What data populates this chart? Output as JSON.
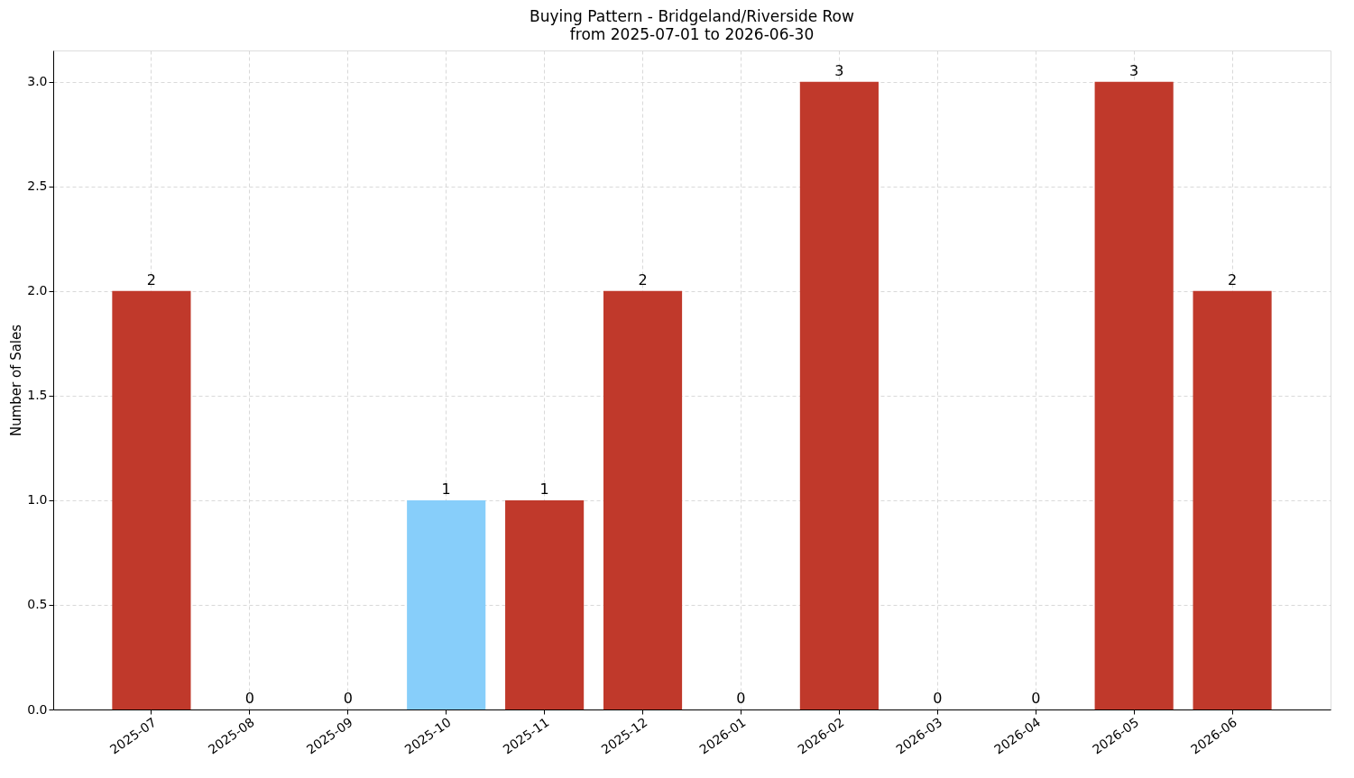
{
  "chart_data": {
    "type": "bar",
    "title": "Buying Pattern - Bridgeland/Riverside Row",
    "subtitle": "from 2025-07-01 to 2026-06-30",
    "ylabel": "Number of Sales",
    "categories": [
      "2025-07",
      "2025-08",
      "2025-09",
      "2025-10",
      "2025-11",
      "2025-12",
      "2026-01",
      "2026-02",
      "2026-03",
      "2026-04",
      "2026-05",
      "2026-06"
    ],
    "values": [
      2,
      0,
      0,
      1,
      1,
      2,
      0,
      3,
      0,
      0,
      3,
      2
    ],
    "colors": [
      "#c0392b",
      "#c0392b",
      "#c0392b",
      "#87cefa",
      "#c0392b",
      "#c0392b",
      "#c0392b",
      "#c0392b",
      "#c0392b",
      "#c0392b",
      "#c0392b",
      "#c0392b"
    ],
    "ylim": [
      0,
      3.15
    ],
    "yticks": [
      {
        "value": 0,
        "label": "0.0"
      },
      {
        "value": 0.5,
        "label": "0.5"
      },
      {
        "value": 1,
        "label": "1.0"
      },
      {
        "value": 1.5,
        "label": "1.5"
      },
      {
        "value": 2,
        "label": "2.0"
      },
      {
        "value": 2.5,
        "label": "2.5"
      },
      {
        "value": 3,
        "label": "3.0"
      }
    ],
    "grid": true,
    "data_labels": true
  }
}
